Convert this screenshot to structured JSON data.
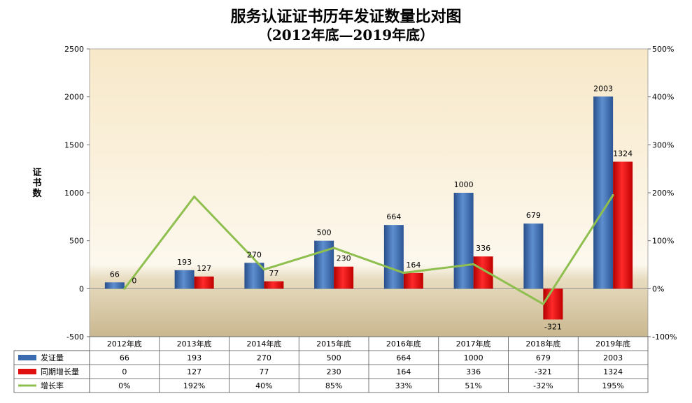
{
  "title": "服务认证证书历年发证数量比对图",
  "subtitle": "（2012年底—2019年底）",
  "chart_data": {
    "type": "bar",
    "title": "服务认证证书历年发证数量比对图",
    "subtitle": "（2012年底—2019年底）",
    "ylabel": "证书数",
    "ylim": [
      -500,
      2500
    ],
    "y_ticks": [
      "2500",
      "2000",
      "1500",
      "1000",
      "500",
      "0",
      "-500"
    ],
    "y2lim": [
      -1.0,
      5.0
    ],
    "y2_ticks": [
      "500%",
      "400%",
      "300%",
      "200%",
      "100%",
      "0%",
      "-100%"
    ],
    "categories": [
      "2012年底",
      "2013年底",
      "2014年底",
      "2015年底",
      "2016年底",
      "2017年底",
      "2018年底",
      "2019年底"
    ],
    "series": [
      {
        "name": "发证量",
        "type": "bar",
        "axis": "left",
        "color": "#3a6bb0",
        "values": [
          66,
          193,
          270,
          500,
          664,
          1000,
          679,
          2003
        ],
        "labels": [
          "66",
          "193",
          "270",
          "500",
          "664",
          "1000",
          "679",
          "2003"
        ]
      },
      {
        "name": "同期增长量",
        "type": "bar",
        "axis": "left",
        "color": "#e01010",
        "values": [
          0,
          127,
          77,
          230,
          164,
          336,
          -321,
          1324
        ],
        "labels": [
          "0",
          "127",
          "77",
          "230",
          "164",
          "336",
          "-321",
          "1324"
        ]
      },
      {
        "name": "增长率",
        "type": "line",
        "axis": "right",
        "color": "#8fbf4f",
        "values": [
          0.0,
          1.92,
          0.4,
          0.85,
          0.33,
          0.51,
          -0.32,
          1.95
        ],
        "labels": [
          "0%",
          "192%",
          "40%",
          "85%",
          "33%",
          "51%",
          "-32%",
          "195%"
        ]
      }
    ],
    "grid": false,
    "legend": "data-table"
  }
}
